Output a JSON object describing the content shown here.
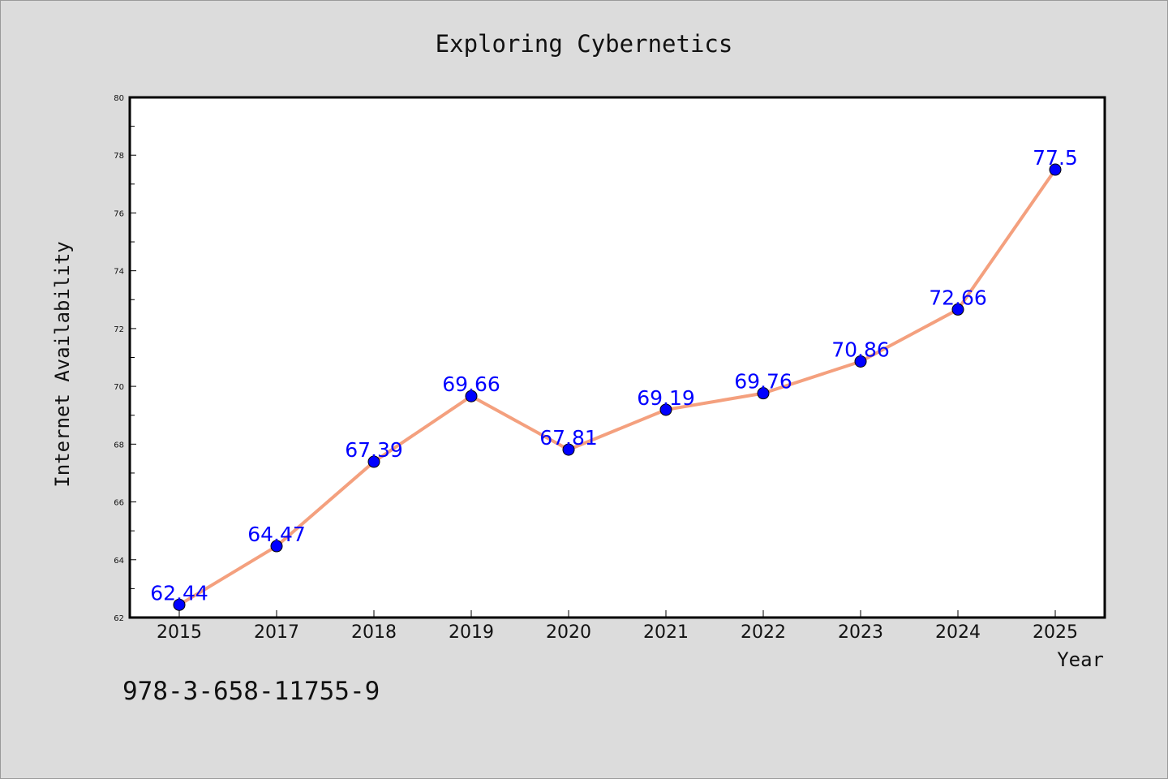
{
  "chart_data": {
    "type": "line",
    "title": "Exploring Cybernetics",
    "xlabel": "Year",
    "ylabel": "Internet Availability",
    "categories": [
      "2015",
      "2017",
      "2018",
      "2019",
      "2020",
      "2021",
      "2022",
      "2023",
      "2024",
      "2025"
    ],
    "values": [
      62.44,
      64.47,
      67.39,
      69.66,
      67.81,
      69.19,
      69.76,
      70.86,
      72.66,
      77.5
    ],
    "data_labels": [
      "62.44",
      "64.47",
      "67.39",
      "69.66",
      "67.81",
      "69.19",
      "69.76",
      "70.86",
      "72.66",
      "77.5"
    ],
    "ylim": [
      62,
      80
    ],
    "yticks": [
      62,
      64,
      66,
      68,
      70,
      72,
      74,
      76,
      78,
      80
    ],
    "grid": false,
    "legend": "none",
    "colors": {
      "line": "#f4a07e",
      "marker": "#0000ff",
      "marker_edge": "#000000",
      "data_label": "#0000ff",
      "background": "#dcdcdc",
      "plot_background": "#ffffff"
    }
  },
  "footer": {
    "isbn": "978-3-658-11755-9"
  }
}
